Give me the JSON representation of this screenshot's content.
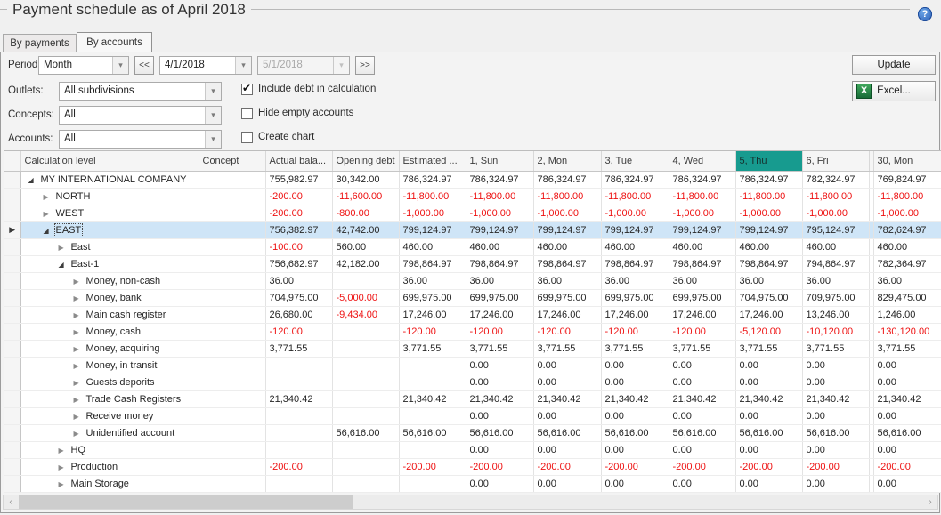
{
  "window": {
    "title": "Payment schedule as of April 2018",
    "help_icon": "?",
    "accent_teal": "#179b8f",
    "negative_color": "#ee1111",
    "selection_color": "#cfe5f7"
  },
  "tabs": [
    {
      "label": "By payments",
      "active": false
    },
    {
      "label": "By accounts",
      "active": true
    }
  ],
  "controls": {
    "period": {
      "label": "Period",
      "value": "Month",
      "prev": "<<",
      "date_from": "4/1/2018",
      "date_to": "5/1/2018",
      "next": ">>"
    },
    "outlets": {
      "label": "Outlets:",
      "value": "All subdivisions"
    },
    "concepts": {
      "label": "Concepts:",
      "value": "All"
    },
    "accounts": {
      "label": "Accounts:",
      "value": "All"
    },
    "checkboxes": [
      {
        "label": "Include debt in calculation",
        "checked": true
      },
      {
        "label": "Hide empty accounts",
        "checked": false
      },
      {
        "label": "Create chart",
        "checked": false
      }
    ],
    "update_button": "Update",
    "excel_button": "Excel...",
    "excel_icon": "X",
    "dropdown_icon": "▾"
  },
  "table": {
    "columns": [
      "Calculation level",
      "Concept",
      "Actual bala...",
      "Opening debt",
      "Estimated ...",
      "1, Sun",
      "2, Mon",
      "3, Tue",
      "4, Wed",
      "5, Thu",
      "6, Fri",
      "30, Mon"
    ],
    "highlighted_column": "5, Thu",
    "rows": [
      {
        "name": "MY INTERNATIONAL COMPANY",
        "level": 0,
        "expand": "open",
        "selected": false,
        "values": [
          "",
          "755,982.97",
          "30,342.00",
          "786,324.97",
          "786,324.97",
          "786,324.97",
          "786,324.97",
          "786,324.97",
          "786,324.97",
          "782,324.97",
          "769,824.97"
        ]
      },
      {
        "name": "NORTH",
        "level": 1,
        "expand": "closed",
        "selected": false,
        "values": [
          "",
          "-200.00",
          "-11,600.00",
          "-11,800.00",
          "-11,800.00",
          "-11,800.00",
          "-11,800.00",
          "-11,800.00",
          "-11,800.00",
          "-11,800.00",
          "-11,800.00"
        ]
      },
      {
        "name": "WEST",
        "level": 1,
        "expand": "closed",
        "selected": false,
        "values": [
          "",
          "-200.00",
          "-800.00",
          "-1,000.00",
          "-1,000.00",
          "-1,000.00",
          "-1,000.00",
          "-1,000.00",
          "-1,000.00",
          "-1,000.00",
          "-1,000.00"
        ]
      },
      {
        "name": "EAST",
        "level": 1,
        "expand": "open",
        "selected": true,
        "values": [
          "",
          "756,382.97",
          "42,742.00",
          "799,124.97",
          "799,124.97",
          "799,124.97",
          "799,124.97",
          "799,124.97",
          "799,124.97",
          "795,124.97",
          "782,624.97"
        ]
      },
      {
        "name": "East",
        "level": 2,
        "expand": "closed",
        "selected": false,
        "values": [
          "",
          "-100.00",
          "560.00",
          "460.00",
          "460.00",
          "460.00",
          "460.00",
          "460.00",
          "460.00",
          "460.00",
          "460.00"
        ]
      },
      {
        "name": "East-1",
        "level": 2,
        "expand": "open",
        "selected": false,
        "values": [
          "",
          "756,682.97",
          "42,182.00",
          "798,864.97",
          "798,864.97",
          "798,864.97",
          "798,864.97",
          "798,864.97",
          "798,864.97",
          "794,864.97",
          "782,364.97"
        ]
      },
      {
        "name": "Money, non-cash",
        "level": 3,
        "expand": "closed",
        "selected": false,
        "values": [
          "",
          "36.00",
          "",
          "36.00",
          "36.00",
          "36.00",
          "36.00",
          "36.00",
          "36.00",
          "36.00",
          "36.00"
        ]
      },
      {
        "name": "Money, bank",
        "level": 3,
        "expand": "closed",
        "selected": false,
        "values": [
          "",
          "704,975.00",
          "-5,000.00",
          "699,975.00",
          "699,975.00",
          "699,975.00",
          "699,975.00",
          "699,975.00",
          "704,975.00",
          "709,975.00",
          "829,475.00"
        ]
      },
      {
        "name": "Main cash register",
        "level": 3,
        "expand": "closed",
        "selected": false,
        "values": [
          "",
          "26,680.00",
          "-9,434.00",
          "17,246.00",
          "17,246.00",
          "17,246.00",
          "17,246.00",
          "17,246.00",
          "17,246.00",
          "13,246.00",
          "1,246.00"
        ]
      },
      {
        "name": "Money, cash",
        "level": 3,
        "expand": "closed",
        "selected": false,
        "values": [
          "",
          "-120.00",
          "",
          "-120.00",
          "-120.00",
          "-120.00",
          "-120.00",
          "-120.00",
          "-5,120.00",
          "-10,120.00",
          "-130,120.00"
        ]
      },
      {
        "name": "Money, acquiring",
        "level": 3,
        "expand": "closed",
        "selected": false,
        "values": [
          "",
          "3,771.55",
          "",
          "3,771.55",
          "3,771.55",
          "3,771.55",
          "3,771.55",
          "3,771.55",
          "3,771.55",
          "3,771.55",
          "3,771.55"
        ]
      },
      {
        "name": "Money, in transit",
        "level": 3,
        "expand": "closed",
        "selected": false,
        "values": [
          "",
          "",
          "",
          "",
          "0.00",
          "0.00",
          "0.00",
          "0.00",
          "0.00",
          "0.00",
          "0.00"
        ]
      },
      {
        "name": "Guests deporits",
        "level": 3,
        "expand": "closed",
        "selected": false,
        "values": [
          "",
          "",
          "",
          "",
          "0.00",
          "0.00",
          "0.00",
          "0.00",
          "0.00",
          "0.00",
          "0.00"
        ]
      },
      {
        "name": "Trade Cash Registers",
        "level": 3,
        "expand": "closed",
        "selected": false,
        "values": [
          "",
          "21,340.42",
          "",
          "21,340.42",
          "21,340.42",
          "21,340.42",
          "21,340.42",
          "21,340.42",
          "21,340.42",
          "21,340.42",
          "21,340.42"
        ]
      },
      {
        "name": "Receive money",
        "level": 3,
        "expand": "closed",
        "selected": false,
        "values": [
          "",
          "",
          "",
          "",
          "0.00",
          "0.00",
          "0.00",
          "0.00",
          "0.00",
          "0.00",
          "0.00"
        ]
      },
      {
        "name": "Unidentified account",
        "level": 3,
        "expand": "closed",
        "selected": false,
        "values": [
          "",
          "",
          "56,616.00",
          "56,616.00",
          "56,616.00",
          "56,616.00",
          "56,616.00",
          "56,616.00",
          "56,616.00",
          "56,616.00",
          "56,616.00"
        ]
      },
      {
        "name": "HQ",
        "level": 2,
        "expand": "closed",
        "selected": false,
        "values": [
          "",
          "",
          "",
          "",
          "0.00",
          "0.00",
          "0.00",
          "0.00",
          "0.00",
          "0.00",
          "0.00"
        ]
      },
      {
        "name": "Production",
        "level": 2,
        "expand": "closed",
        "selected": false,
        "values": [
          "",
          "-200.00",
          "",
          "-200.00",
          "-200.00",
          "-200.00",
          "-200.00",
          "-200.00",
          "-200.00",
          "-200.00",
          "-200.00"
        ]
      },
      {
        "name": "Main Storage",
        "level": 2,
        "expand": "closed",
        "selected": false,
        "values": [
          "",
          "",
          "",
          "",
          "0.00",
          "0.00",
          "0.00",
          "0.00",
          "0.00",
          "0.00",
          "0.00"
        ]
      }
    ]
  }
}
